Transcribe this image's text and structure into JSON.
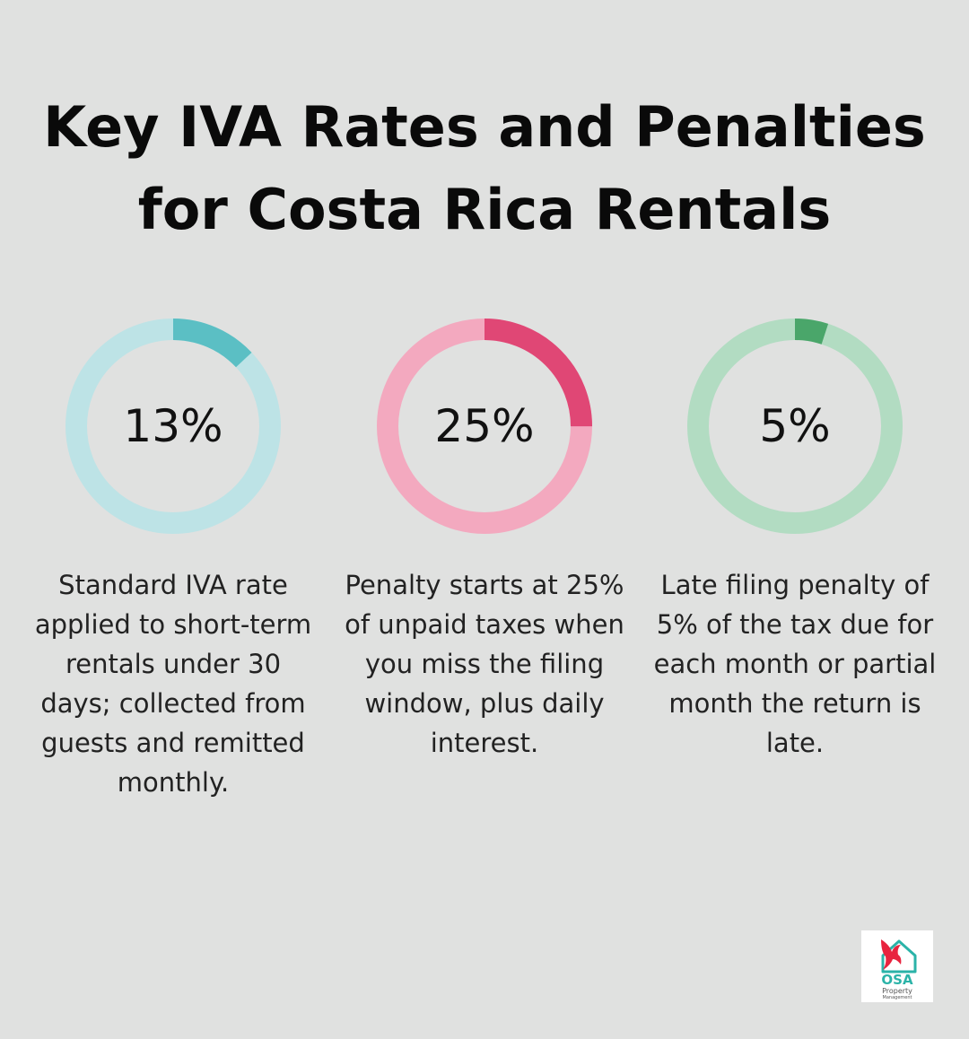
{
  "header": {
    "title_line1": "Key IVA Rates and Penalties",
    "title_line2": "for Costa Rica Rentals"
  },
  "chart_data": [
    {
      "type": "pie",
      "values": [
        13,
        87
      ],
      "value_label": "13%",
      "description": "Standard IVA rate applied to short-term rentals under 30 days; collected from guests and remitted monthly.",
      "colors": {
        "fill": "#5bbfc4",
        "track": "#bde3e6"
      }
    },
    {
      "type": "pie",
      "values": [
        25,
        75
      ],
      "value_label": "25%",
      "description": "Penalty starts at 25% of unpaid taxes when you miss the filing window, plus daily interest.",
      "colors": {
        "fill": "#e04775",
        "track": "#f3a9bf"
      }
    },
    {
      "type": "pie",
      "values": [
        5,
        95
      ],
      "value_label": "5%",
      "description": "Late filing penalty of 5% of the tax due for each month or partial month the return is late.",
      "colors": {
        "fill": "#4aa66a",
        "track": "#b2dcc2"
      }
    }
  ],
  "logo": {
    "brand": "OSA",
    "line1": "Property",
    "line2": "Management",
    "icon": "parrot-house-icon",
    "colors": {
      "brand": "#2bb3a8",
      "bird": "#e8243f",
      "house": "#2bb3a8"
    }
  }
}
